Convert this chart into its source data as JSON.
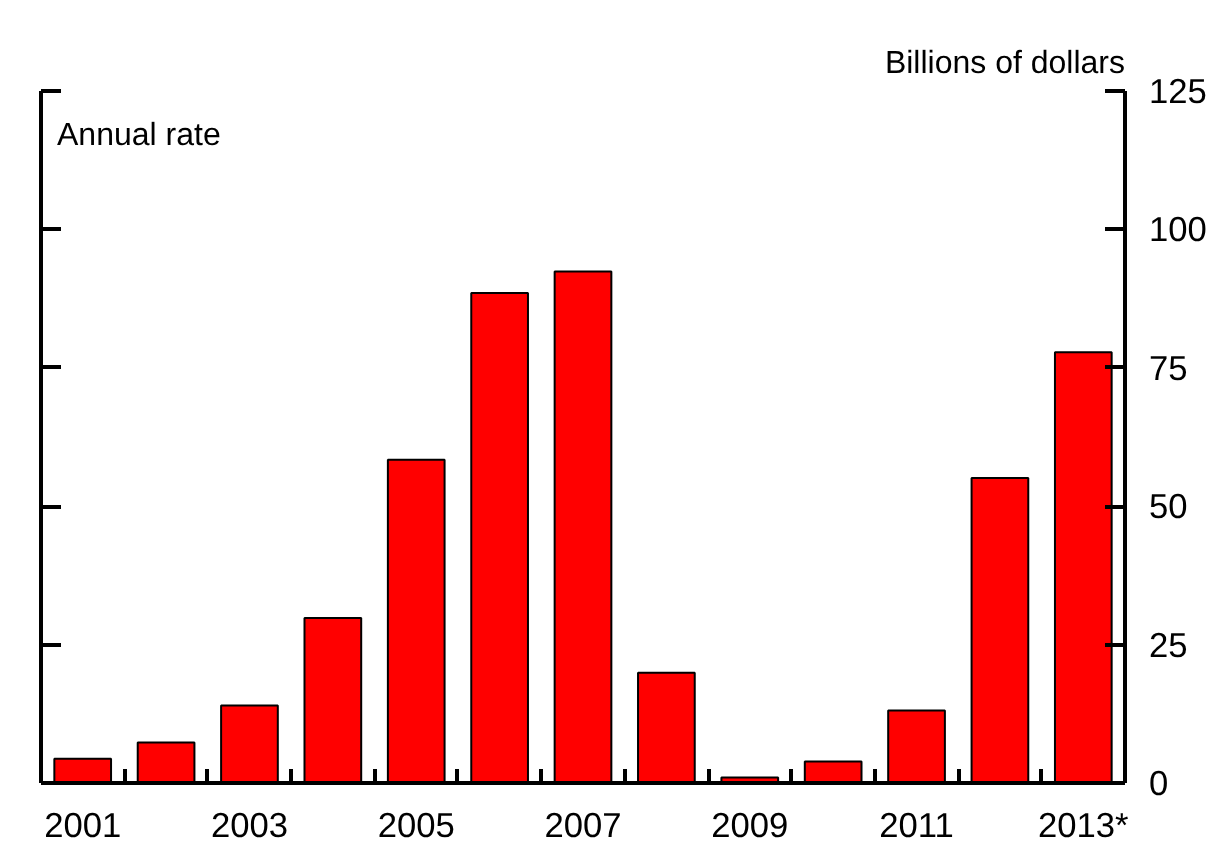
{
  "chart_data": {
    "type": "bar",
    "ylabel": "Billions of dollars",
    "annotations": [
      "Annual rate"
    ],
    "categories": [
      "2001",
      null,
      "2003",
      null,
      "2005",
      null,
      "2007",
      null,
      "2009",
      null,
      "2011",
      null,
      "2013*"
    ],
    "values": [
      4.4,
      7.3,
      14.0,
      29.8,
      58.4,
      88.5,
      92.4,
      19.9,
      1.0,
      3.9,
      13.1,
      55.1,
      77.8
    ],
    "color": "#ff0000",
    "ylim": [
      0,
      125
    ],
    "yticks": [
      0,
      25,
      50,
      75,
      100,
      125
    ]
  }
}
